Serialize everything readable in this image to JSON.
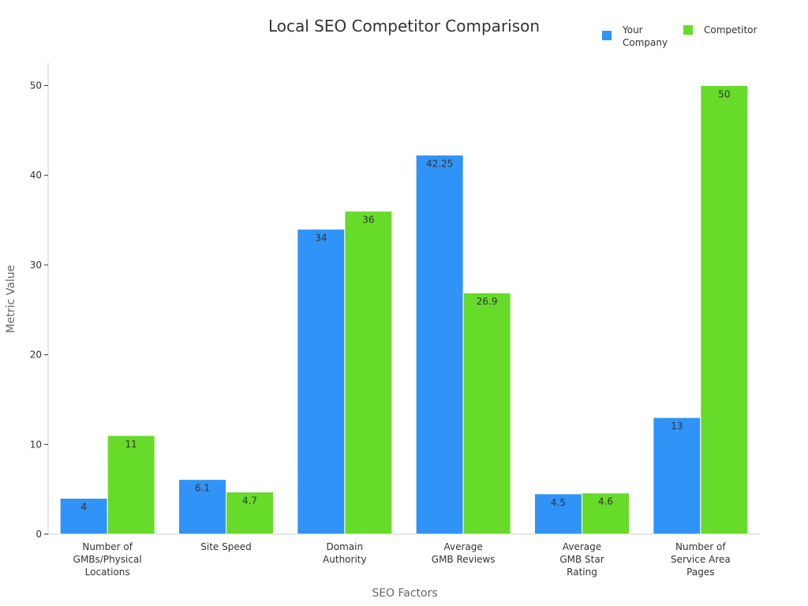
{
  "chart_data": {
    "type": "bar",
    "title": "Local SEO Competitor Comparison",
    "xlabel": "SEO Factors",
    "ylabel": "Metric Value",
    "ylim": [
      0,
      52.5
    ],
    "yticks": [
      0,
      10,
      20,
      30,
      40,
      50
    ],
    "grid": false,
    "legend_position": "top-right",
    "categories": [
      [
        "Number of",
        "GMBs/Physical",
        "Locations"
      ],
      [
        "Site Speed"
      ],
      [
        "Domain",
        "Authority"
      ],
      [
        "Average",
        "GMB Reviews"
      ],
      [
        "Average",
        "GMB Star",
        "Rating"
      ],
      [
        "Number of",
        "Service Area",
        "Pages"
      ]
    ],
    "series": [
      {
        "name_lines": [
          "Your",
          "Company"
        ],
        "color": "#3093F7",
        "values": [
          4,
          6.1,
          34,
          42.25,
          4.5,
          13
        ],
        "labels": [
          "4",
          "6.1",
          "34",
          "42.25",
          "4.5",
          "13"
        ]
      },
      {
        "name_lines": [
          "Competitor"
        ],
        "color": "#67DB29",
        "values": [
          11,
          4.7,
          36,
          26.9,
          4.6,
          50
        ],
        "labels": [
          "11",
          "4.7",
          "36",
          "26.9",
          "4.6",
          "50"
        ]
      }
    ]
  }
}
